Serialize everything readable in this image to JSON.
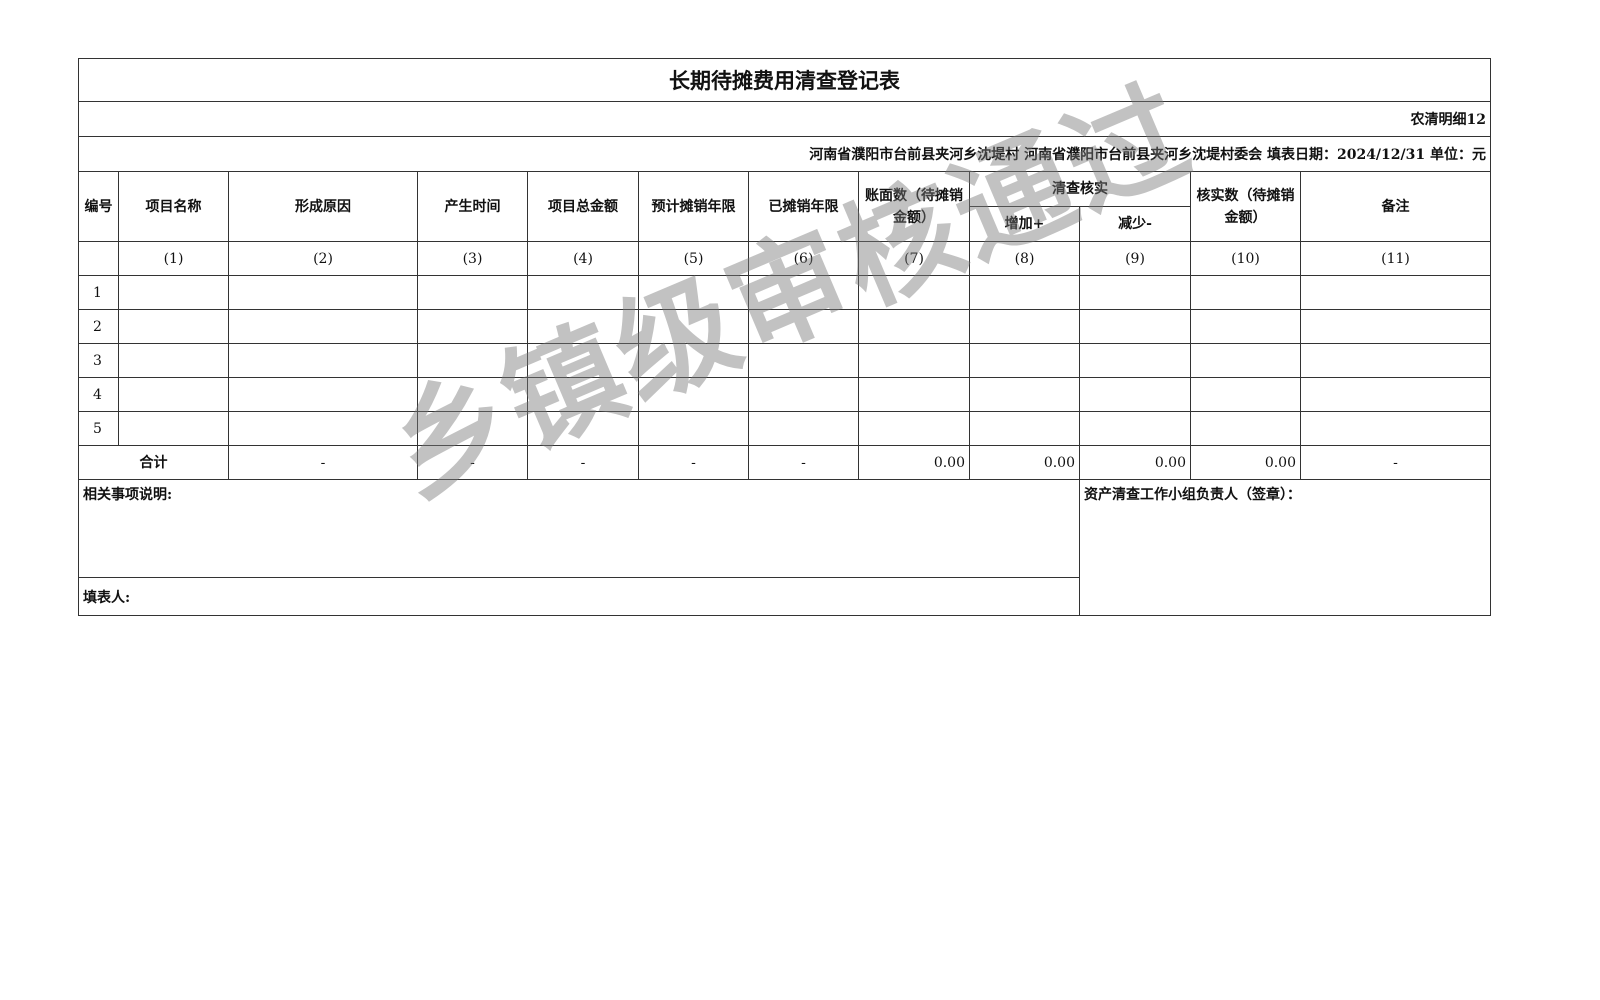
{
  "title": "长期待摊费用清查登记表",
  "form_code": "农清明细12",
  "info_line": "河南省濮阳市台前县夹河乡沈堤村  河南省濮阳市台前县夹河乡沈堤村委会  填表日期：2024/12/31  单位：元",
  "headers": {
    "no": "编号",
    "name": "项目名称",
    "reason": "形成原因",
    "time": "产生时间",
    "total": "项目总金额",
    "expected_years": "预计摊销年限",
    "amortized_years": "已摊销年限",
    "book_value": "账面数（待摊销金额）",
    "verify_group": "清查核实",
    "increase": "增加+",
    "decrease": "减少-",
    "verified_value": "核实数（待摊销金额）",
    "remark": "备注"
  },
  "col_index": [
    "(1)",
    "(2)",
    "(3)",
    "(4)",
    "(5)",
    "(6)",
    "(7)",
    "(8)",
    "(9)",
    "(10)",
    "(11)"
  ],
  "rows": [
    "1",
    "2",
    "3",
    "4",
    "5"
  ],
  "totals": {
    "label": "合计",
    "values": [
      "-",
      "-",
      "-",
      "-",
      "-",
      "0.00",
      "0.00",
      "0.00",
      "0.00",
      "-"
    ]
  },
  "notes_label": "相关事项说明:",
  "filler_label": "填表人:",
  "leader_label": "资产清查工作小组负责人（签章）：",
  "watermark": "乡镇级审核通过"
}
